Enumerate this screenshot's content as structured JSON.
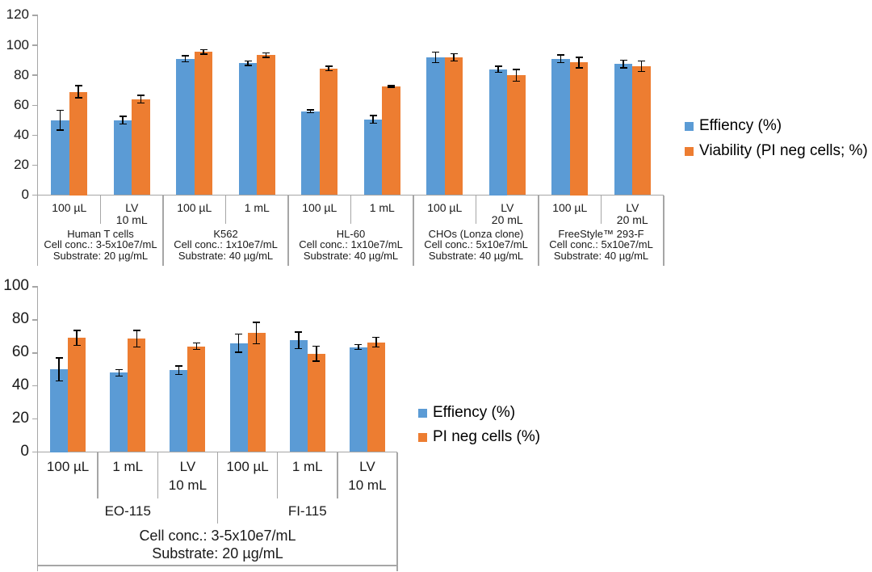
{
  "colors": {
    "efficiency_blue": "#5B9BD5",
    "viability_orange": "#ED7D31",
    "axis_line": "#A6A6A6",
    "error_bar": "#000000",
    "text": "#1A1A1A"
  },
  "chart_data": [
    {
      "id": "top-chart",
      "type": "bar",
      "title": "",
      "xlabel": "",
      "ylabel": "",
      "ylim": [
        0,
        120
      ],
      "ytick_step": 20,
      "grid": false,
      "legend_position": "right",
      "legend": [
        "Effiency (%)",
        "Viability (PI neg cells; %)"
      ],
      "categories": [
        "100 µL",
        "LV\n10 mL",
        "100 µL",
        "1 mL",
        "100 µL",
        "1 mL",
        "100 µL",
        "LV\n20 mL",
        "100 µL",
        "LV\n20 mL"
      ],
      "groups": [
        {
          "label": "Human T cells\nCell conc.: 3-5x10e7/mL\nSubstrate: 20 µg/mL",
          "span": 2
        },
        {
          "label": "K562\nCell conc.: 1x10e7/mL\nSubstrate: 40 µg/mL",
          "span": 2
        },
        {
          "label": "HL-60\nCell conc.: 1x10e7/mL\nSubstrate: 40 µg/mL",
          "span": 2
        },
        {
          "label": "CHOs (Lonza clone)\nCell conc.: 5x10e7/mL\nSubstrate: 40 µg/mL",
          "span": 2
        },
        {
          "label": "FreeStyle™ 293-F\nCell conc.: 5x10e7/mL\nSubstrate: 40 µg/mL",
          "span": 2
        }
      ],
      "series": [
        {
          "name": "Effiency (%)",
          "color": "#5B9BD5",
          "values": [
            50,
            50,
            91,
            88,
            56,
            50.5,
            92,
            84,
            91,
            87.5
          ],
          "errors": [
            6.5,
            2.5,
            2,
            1.5,
            1,
            2.5,
            3.5,
            2,
            2.5,
            2.5
          ]
        },
        {
          "name": "Viability (PI neg cells; %)",
          "color": "#ED7D31",
          "values": [
            69,
            64,
            95.5,
            93.5,
            84.5,
            72.5,
            92,
            80,
            88.5,
            86
          ],
          "errors": [
            4,
            2.5,
            1.5,
            1.5,
            1.5,
            0.5,
            2.5,
            4,
            3.5,
            3.5
          ]
        }
      ]
    },
    {
      "id": "bottom-chart",
      "type": "bar",
      "title": "",
      "xlabel": "",
      "ylabel": "",
      "ylim": [
        0,
        100
      ],
      "ytick_step": 20,
      "grid": false,
      "legend_position": "right",
      "legend": [
        "Effiency (%)",
        "PI neg cells (%)"
      ],
      "categories": [
        "100 µL",
        "1 mL",
        "LV\n10 mL",
        "100 µL",
        "1 mL",
        "LV\n10 mL"
      ],
      "groups": [
        {
          "label": "EO-115",
          "span": 3
        },
        {
          "label": "FI-115",
          "span": 3
        }
      ],
      "footer": "Cell conc.: 3-5x10e7/mL\nSubstrate: 20 µg/mL",
      "series": [
        {
          "name": "Effiency (%)",
          "color": "#5B9BD5",
          "values": [
            50,
            48,
            49.5,
            66,
            67.5,
            63.5
          ],
          "errors": [
            7,
            2,
            2.5,
            5.5,
            5,
            1.5
          ]
        },
        {
          "name": "PI neg cells (%)",
          "color": "#ED7D31",
          "values": [
            69,
            68.5,
            64,
            72,
            59.5,
            66.5
          ],
          "errors": [
            4.5,
            5,
            2,
            6.5,
            4.5,
            3
          ]
        }
      ]
    }
  ]
}
